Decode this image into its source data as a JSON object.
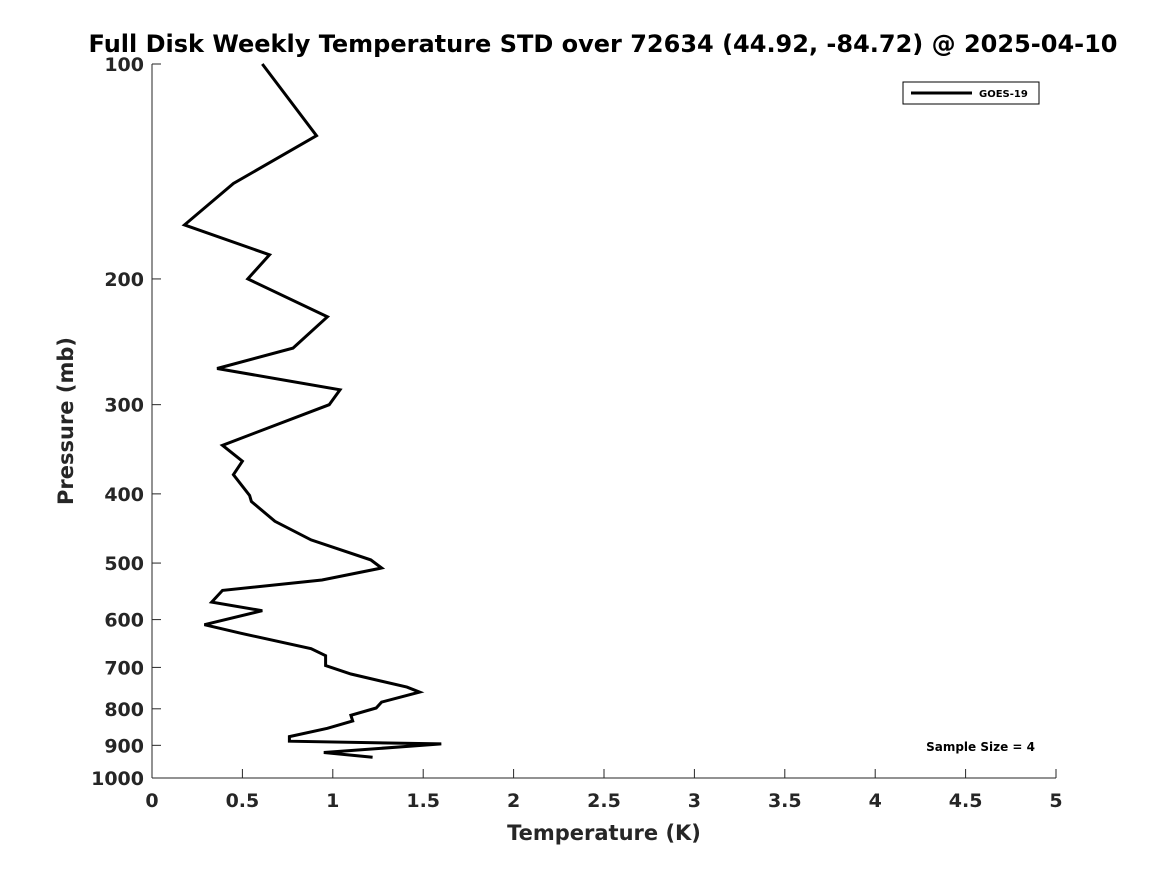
{
  "chart_data": {
    "type": "line",
    "title": "Full Disk Weekly Temperature STD over 72634 (44.92, -84.72) @ 2025-04-10",
    "xlabel": "Temperature (K)",
    "ylabel": "Pressure (mb)",
    "xlim": [
      0,
      5
    ],
    "ylim": [
      1000,
      100
    ],
    "yscale": "log",
    "xticks": [
      0,
      0.5,
      1,
      1.5,
      2,
      2.5,
      3,
      3.5,
      4,
      4.5,
      5
    ],
    "xtick_labels": [
      "0",
      "0.5",
      "1",
      "1.5",
      "2",
      "2.5",
      "3",
      "3.5",
      "4",
      "4.5",
      "5"
    ],
    "yticks": [
      100,
      200,
      300,
      400,
      500,
      600,
      700,
      800,
      900,
      1000
    ],
    "ytick_labels": [
      "100",
      "200",
      "300",
      "400",
      "500",
      "600",
      "700",
      "800",
      "900",
      "1000"
    ],
    "grid": false,
    "legend_position": "top-right",
    "annotation": "Sample Size = 4",
    "series": [
      {
        "name": "GOES-19",
        "color": "#000000",
        "x": [
          0.61,
          0.91,
          0.45,
          0.18,
          0.65,
          0.53,
          0.97,
          0.78,
          0.36,
          1.04,
          0.98,
          0.39,
          0.5,
          0.45,
          0.54,
          0.55,
          0.68,
          0.88,
          1.21,
          1.27,
          0.94,
          0.39,
          0.33,
          0.61,
          0.29,
          0.49,
          0.88,
          0.96,
          0.96,
          1.1,
          1.41,
          1.48,
          1.27,
          1.24,
          1.1,
          1.11,
          0.97,
          0.76,
          0.76,
          1.6,
          0.95,
          1.22
        ],
        "y": [
          100,
          126,
          147,
          168,
          185,
          200,
          226,
          250,
          267,
          286,
          300,
          342,
          360,
          376,
          402,
          410,
          437,
          464,
          495,
          508,
          528,
          546,
          567,
          583,
          610,
          627,
          659,
          674,
          696,
          715,
          746,
          758,
          783,
          798,
          817,
          832,
          852,
          875,
          888,
          896,
          921,
          935
        ]
      }
    ]
  }
}
